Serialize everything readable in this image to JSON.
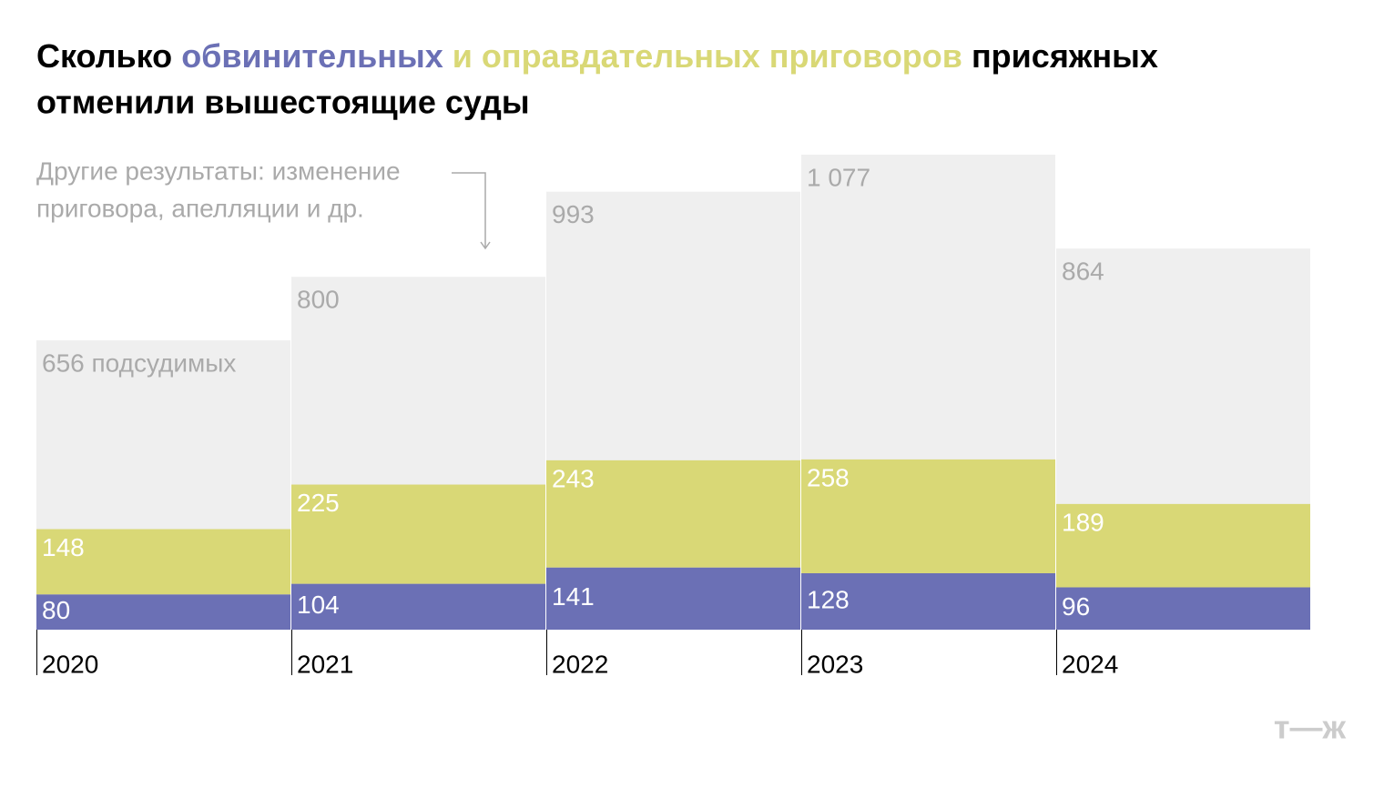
{
  "chart_data": {
    "type": "stacked_bar_with_totals",
    "title_parts": [
      {
        "text": "Сколько",
        "color": "#000000"
      },
      {
        "text": "обвинительных",
        "color": "#6b70b5"
      },
      {
        "text": "и оправдательных приговоров",
        "color": "#d9d876"
      },
      {
        "text": "присяжных",
        "color": "#000000"
      }
    ],
    "title_line2": "отменили вышестоящие суды",
    "annotation": [
      "Другие результаты: изменение",
      "приговора, апелляции и др."
    ],
    "categories": [
      "2020",
      "2021",
      "2022",
      "2023",
      "2024"
    ],
    "totals": {
      "color": "#efefef",
      "values": [
        656,
        800,
        993,
        1077,
        864
      ],
      "value_labels": [
        "656 подсудимых",
        "800",
        "993",
        "1 077",
        "864"
      ]
    },
    "series": [
      {
        "color": "#6b70b5",
        "values": [
          80,
          104,
          141,
          128,
          96
        ]
      },
      {
        "color": "#d9d876",
        "values": [
          148,
          225,
          243,
          258,
          189
        ]
      }
    ],
    "logo": "т—ж"
  }
}
